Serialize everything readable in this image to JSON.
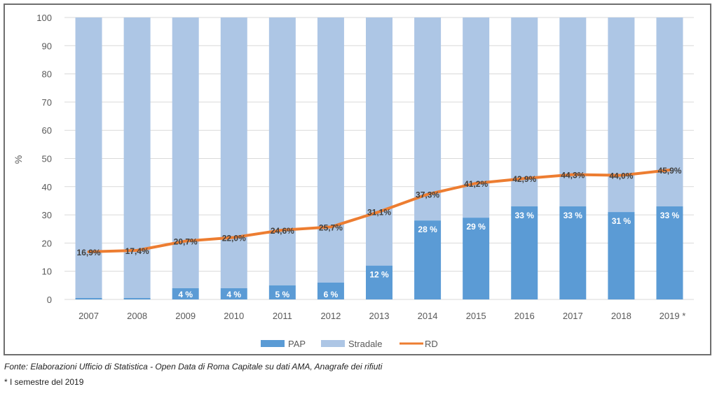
{
  "chart_data": {
    "type": "bar",
    "subtype": "stacked-bar-with-line",
    "title": "",
    "xlabel": "",
    "ylabel": "%",
    "ylim": [
      0,
      100
    ],
    "yticks": [
      0,
      10,
      20,
      30,
      40,
      50,
      60,
      70,
      80,
      90,
      100
    ],
    "grid": true,
    "legend_position": "bottom",
    "categories": [
      "2007",
      "2008",
      "2009",
      "2010",
      "2011",
      "2012",
      "2013",
      "2014",
      "2015",
      "2016",
      "2017",
      "2018",
      "2019 *"
    ],
    "series": [
      {
        "name": "PAP",
        "type": "bar",
        "color": "#5b9bd5",
        "values": [
          0.5,
          0.5,
          4,
          4,
          5,
          6,
          12,
          28,
          29,
          33,
          33,
          31,
          33
        ],
        "labels": [
          "",
          "",
          "4 %",
          "4 %",
          "5 %",
          "6 %",
          "12 %",
          "28 %",
          "29 %",
          "33 %",
          "33 %",
          "31 %",
          "33 %"
        ]
      },
      {
        "name": "Stradale",
        "type": "bar",
        "color": "#adc6e5",
        "values": [
          99.5,
          99.5,
          96,
          96,
          95,
          94,
          88,
          72,
          71,
          67,
          67,
          69,
          67
        ]
      },
      {
        "name": "RD",
        "type": "line",
        "color": "#ed7d31",
        "values": [
          16.9,
          17.4,
          20.7,
          22.0,
          24.6,
          25.7,
          31.1,
          37.3,
          41.2,
          42.9,
          44.3,
          44.0,
          45.9
        ],
        "labels": [
          "16,9%",
          "17,4%",
          "20,7%",
          "22,0%",
          "24,6%",
          "25,7%",
          "31,1%",
          "37,3%",
          "41,2%",
          "42,9%",
          "44,3%",
          "44,0%",
          "45,9%"
        ]
      }
    ]
  },
  "footer": {
    "source": "Fonte: Elaborazioni Ufficio di Statistica - Open Data di Roma Capitale su dati AMA, Anagrafe dei rifiuti",
    "note": "*   I semestre del 2019"
  }
}
